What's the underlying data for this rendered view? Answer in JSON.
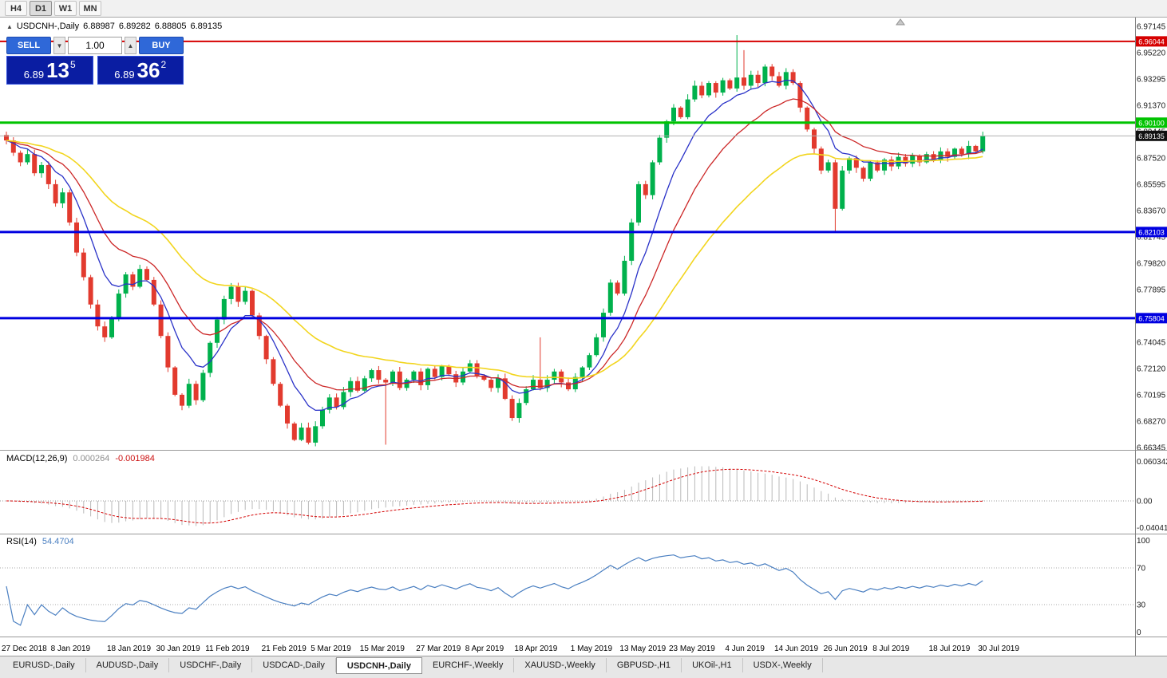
{
  "toolbar": {
    "timeframes": [
      {
        "label": "H4",
        "active": false
      },
      {
        "label": "D1",
        "active": true
      },
      {
        "label": "W1",
        "active": false
      },
      {
        "label": "MN",
        "active": false
      }
    ]
  },
  "chart": {
    "symbol": "USDCNH-,Daily",
    "ohlc": {
      "open": "6.88987",
      "high": "6.89282",
      "low": "6.88805",
      "close": "6.89135"
    },
    "one_click": {
      "sell_label": "SELL",
      "buy_label": "BUY",
      "volume": "1.00",
      "sell_price": {
        "small": "6.89",
        "big": "13",
        "sup": "5"
      },
      "buy_price": {
        "small": "6.89",
        "big": "36",
        "sup": "2"
      }
    }
  },
  "chart_data": {
    "type": "candlestick",
    "title": "USDCNH-,Daily",
    "x_labels": [
      "27 Dec 2018",
      "8 Jan 2019",
      "18 Jan 2019",
      "30 Jan 2019",
      "11 Feb 2019",
      "21 Feb 2019",
      "5 Mar 2019",
      "15 Mar 2019",
      "27 Mar 2019",
      "8 Apr 2019",
      "18 Apr 2019",
      "1 May 2019",
      "13 May 2019",
      "23 May 2019",
      "4 Jun 2019",
      "14 Jun 2019",
      "26 Jun 2019",
      "8 Jul 2019",
      "18 Jul 2019",
      "30 Jul 2019"
    ],
    "x_label_indices": [
      0,
      7,
      15,
      22,
      29,
      37,
      44,
      51,
      59,
      66,
      73,
      81,
      88,
      95,
      103,
      110,
      117,
      124,
      132,
      139
    ],
    "y_axis": {
      "tick_labels": [
        "6.97145",
        "6.95220",
        "6.93295",
        "6.91370",
        "6.89445",
        "6.87520",
        "6.85595",
        "6.83670",
        "6.81745",
        "6.79820",
        "6.77895",
        "6.75970",
        "6.74045",
        "6.72120",
        "6.70195",
        "6.68270",
        "6.66345"
      ]
    },
    "closes": [
      6.888,
      6.879,
      6.872,
      6.878,
      6.864,
      6.87,
      6.856,
      6.842,
      6.85,
      6.828,
      6.806,
      6.788,
      6.768,
      6.752,
      6.744,
      6.758,
      6.776,
      6.79,
      6.781,
      6.794,
      6.786,
      6.768,
      6.745,
      6.722,
      6.702,
      6.694,
      6.71,
      6.698,
      6.718,
      6.74,
      6.757,
      6.772,
      6.781,
      6.77,
      6.778,
      6.76,
      6.745,
      6.728,
      6.71,
      6.694,
      6.681,
      6.669,
      6.678,
      6.667,
      6.679,
      6.691,
      6.7,
      6.693,
      6.704,
      6.712,
      6.705,
      6.714,
      6.72,
      6.713,
      6.711,
      6.719,
      6.707,
      6.713,
      6.719,
      6.709,
      6.721,
      6.715,
      6.723,
      6.717,
      6.711,
      6.719,
      6.725,
      6.716,
      6.713,
      6.707,
      6.714,
      6.699,
      6.685,
      6.696,
      6.706,
      6.713,
      6.707,
      6.713,
      6.719,
      6.711,
      6.706,
      6.715,
      6.722,
      6.731,
      6.744,
      6.762,
      6.784,
      6.776,
      6.8,
      6.828,
      6.856,
      6.848,
      6.872,
      6.89,
      6.902,
      6.912,
      6.905,
      6.918,
      6.928,
      6.921,
      6.93,
      6.923,
      6.932,
      6.926,
      6.934,
      6.928,
      6.936,
      6.93,
      6.942,
      6.935,
      6.928,
      6.938,
      6.93,
      6.912,
      6.896,
      6.882,
      6.866,
      6.872,
      6.838,
      6.866,
      6.875,
      6.868,
      6.86,
      6.872,
      6.866,
      6.874,
      6.869,
      6.876,
      6.871,
      6.877,
      6.872,
      6.878,
      6.874,
      6.88,
      6.876,
      6.882,
      6.878,
      6.884,
      6.88,
      6.89135
    ],
    "wick_overrides": {
      "54": {
        "low": 6.6655
      },
      "76": {
        "high": 6.744
      },
      "104": {
        "high": 6.965
      },
      "105": {
        "high": 6.954
      },
      "118": {
        "low": 6.8215
      }
    },
    "levels": [
      {
        "label": "6.96044",
        "value": 6.96044,
        "color": "#d60000",
        "width": 2
      },
      {
        "label": "6.90100",
        "value": 6.901,
        "color": "#00c300",
        "width": 3
      },
      {
        "label": "6.82103",
        "value": 6.82103,
        "color": "#0000e0",
        "width": 3
      },
      {
        "label": "6.75804",
        "value": 6.75804,
        "color": "#0000e0",
        "width": 3
      }
    ],
    "current_price": {
      "value": 6.89135,
      "label": "6.89135"
    },
    "moving_averages": [
      {
        "period": 8,
        "color": "#2a32c8",
        "width": 1.3
      },
      {
        "period": 16,
        "color": "#cc2727",
        "width": 1.3
      },
      {
        "period": 34,
        "color": "#f2d51e",
        "width": 1.6
      }
    ],
    "indicators": {
      "macd": {
        "label": "MACD(12,26,9)",
        "value_main": "0.000264",
        "value_signal": "-0.001984",
        "fast": 12,
        "slow": 26,
        "signal": 9,
        "scale_labels": [
          "0.060342",
          "0.00",
          "-0.040415"
        ]
      },
      "rsi": {
        "label": "RSI(14)",
        "value": "54.4704",
        "period": 14,
        "level_labels": [
          "100",
          "70",
          "30",
          "0"
        ],
        "guide_levels": [
          70,
          30
        ]
      }
    },
    "colors": {
      "candle_up": "#00b14c",
      "candle_down": "#e23a2e",
      "macd_hist": "#b9b9b9",
      "macd_signal": "#d40000",
      "rsi_line": "#4a7fc1",
      "price_line": "#b0b0b0",
      "price_tag_bg": "#111111"
    }
  },
  "tabs": {
    "items": [
      {
        "label": "EURUSD-,Daily",
        "active": false
      },
      {
        "label": "AUDUSD-,Daily",
        "active": false
      },
      {
        "label": "USDCHF-,Daily",
        "active": false
      },
      {
        "label": "USDCAD-,Daily",
        "active": false
      },
      {
        "label": "USDCNH-,Daily",
        "active": true
      },
      {
        "label": "EURCHF-,Weekly",
        "active": false
      },
      {
        "label": "XAUUSD-,Weekly",
        "active": false
      },
      {
        "label": "GBPUSD-,H1",
        "active": false
      },
      {
        "label": "UKOil-,H1",
        "active": false
      },
      {
        "label": "USDX-,Weekly",
        "active": false
      }
    ]
  }
}
